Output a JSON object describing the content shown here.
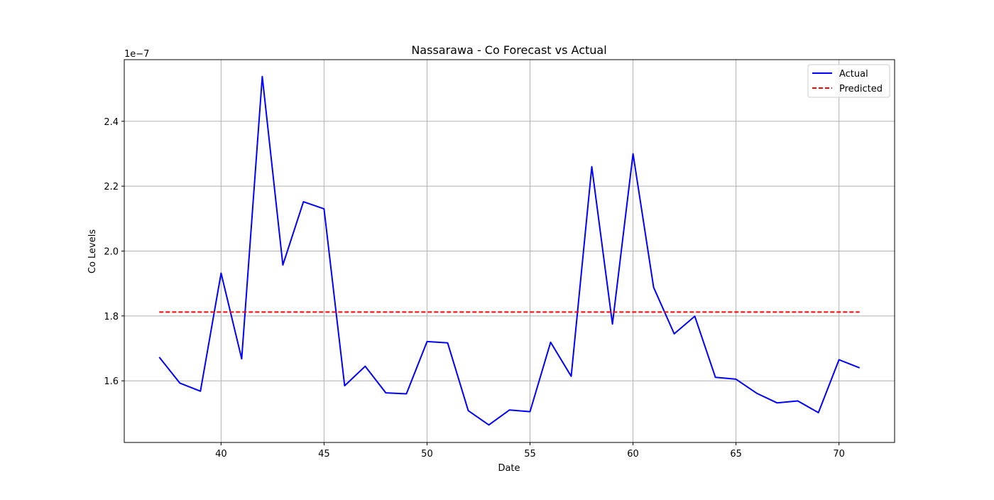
{
  "chart_data": {
    "type": "line",
    "title": "Nassarawa - Co Forecast vs Actual",
    "xlabel": "Date",
    "ylabel": "Co Levels",
    "y_scale_label": "1e−7",
    "x": [
      37,
      38,
      39,
      40,
      41,
      42,
      43,
      44,
      45,
      46,
      47,
      48,
      49,
      50,
      51,
      52,
      53,
      54,
      55,
      56,
      57,
      58,
      59,
      60,
      61,
      62,
      63,
      64,
      65,
      66,
      67,
      68,
      69,
      70,
      71
    ],
    "xlim": [
      35.3,
      72.7
    ],
    "ylim": [
      1.41,
      2.59
    ],
    "xticks": [
      40,
      45,
      50,
      55,
      60,
      65,
      70
    ],
    "yticks": [
      1.6,
      1.8,
      2.0,
      2.2,
      2.4
    ],
    "ytick_labels": [
      "1.6",
      "1.8",
      "2.0",
      "2.2",
      "2.4"
    ],
    "grid": true,
    "legend_position": "top-right",
    "series": [
      {
        "name": "Actual",
        "color": "#0000ff",
        "style": "solid",
        "values": [
          1.673,
          1.593,
          1.568,
          1.932,
          1.668,
          2.538,
          1.957,
          2.152,
          2.13,
          1.585,
          1.645,
          1.563,
          1.56,
          1.721,
          1.717,
          1.508,
          1.464,
          1.51,
          1.505,
          1.719,
          1.614,
          2.26,
          1.775,
          2.3,
          1.888,
          1.745,
          1.799,
          1.611,
          1.605,
          1.562,
          1.532,
          1.538,
          1.502,
          1.665,
          1.64
        ]
      },
      {
        "name": "Predicted",
        "color": "#ff0000",
        "style": "dashed",
        "values": [
          1.812,
          1.812,
          1.812,
          1.812,
          1.812,
          1.812,
          1.812,
          1.812,
          1.812,
          1.812,
          1.812,
          1.812,
          1.812,
          1.812,
          1.812,
          1.812,
          1.812,
          1.812,
          1.812,
          1.812,
          1.812,
          1.812,
          1.812,
          1.812,
          1.812,
          1.812,
          1.812,
          1.812,
          1.812,
          1.812,
          1.812,
          1.812,
          1.812,
          1.812,
          1.812
        ]
      }
    ]
  }
}
